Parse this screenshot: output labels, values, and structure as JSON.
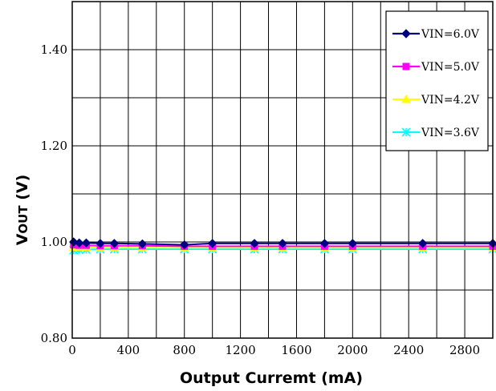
{
  "chart_data": {
    "type": "line",
    "xlabel": "Output Curremt (mA)",
    "ylabel": "VOUT (V)",
    "ylabel_main": "V",
    "ylabel_sub": "OUT",
    "ylabel_unit": " (V)",
    "xlim": [
      0,
      3000
    ],
    "ylim": [
      0.8,
      1.5
    ],
    "x_ticks": [
      0,
      400,
      800,
      1200,
      1600,
      2000,
      2400,
      2800
    ],
    "x_tick_labels": [
      "0",
      "400",
      "800",
      "1200",
      "1600",
      "2000",
      "2400",
      "2800"
    ],
    "y_ticks": [
      0.8,
      1.0,
      1.2,
      1.4
    ],
    "y_tick_labels": [
      "0.80",
      "1.00",
      "1.20",
      "1.40"
    ],
    "grid": true,
    "legend_position": "top-right",
    "x": [
      10,
      50,
      100,
      200,
      300,
      500,
      800,
      1000,
      1300,
      1500,
      1800,
      2000,
      2500,
      3000
    ],
    "series": [
      {
        "name": "VIN=6.0V",
        "color": "#000080",
        "marker": "diamond",
        "values": [
          1.0,
          0.998,
          0.998,
          0.997,
          0.997,
          0.996,
          0.994,
          0.997,
          0.997,
          0.997,
          0.997,
          0.997,
          0.997,
          0.997
        ]
      },
      {
        "name": "VIN=5.0V",
        "color": "#ff00ff",
        "marker": "square",
        "values": [
          0.994,
          0.993,
          0.993,
          0.992,
          0.992,
          0.992,
          0.991,
          0.991,
          0.991,
          0.991,
          0.991,
          0.991,
          0.991,
          0.991
        ]
      },
      {
        "name": "VIN=4.2V",
        "color": "#ffff00",
        "marker": "triangle",
        "values": [
          0.989,
          0.989,
          0.989,
          0.988,
          0.988,
          0.988,
          0.988,
          0.988,
          0.988,
          0.988,
          0.988,
          0.988,
          0.988,
          0.988
        ]
      },
      {
        "name": "VIN=3.6V",
        "color": "#00ffff",
        "marker": "star",
        "values": [
          0.983,
          0.984,
          0.984,
          0.985,
          0.985,
          0.985,
          0.985,
          0.985,
          0.985,
          0.985,
          0.985,
          0.985,
          0.985,
          0.985
        ]
      }
    ]
  }
}
